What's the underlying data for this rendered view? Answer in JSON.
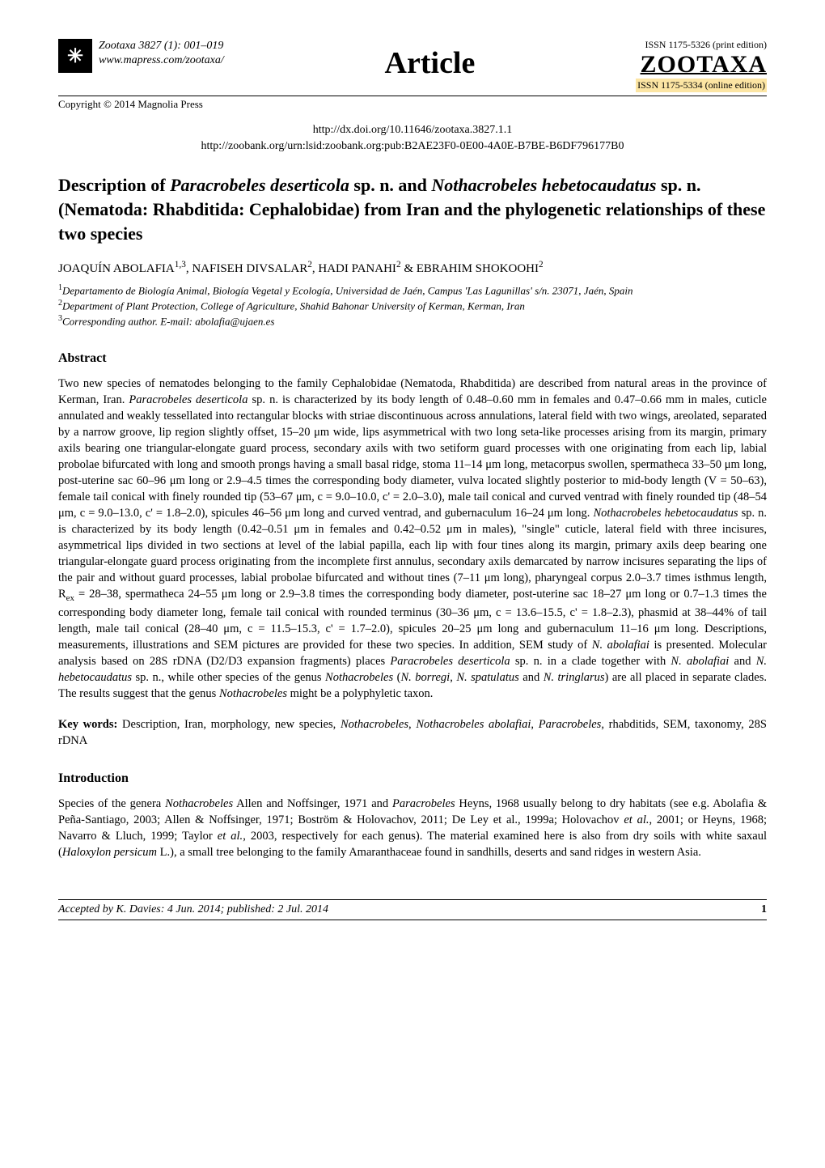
{
  "header": {
    "journal_line": "Zootaxa 3827 (1): 001–019",
    "website": "www.mapress.com/zootaxa/",
    "copyright": "Copyright © 2014 Magnolia Press",
    "article_label": "Article",
    "issn_print": "ISSN 1175-5326 (print edition)",
    "zootaxa": "ZOOTAXA",
    "issn_online": "ISSN 1175-5334 (online edition)",
    "doi_url": "http://dx.doi.org/10.11646/zootaxa.3827.1.1",
    "zoobank_url": "http://zoobank.org/urn:lsid:zoobank.org:pub:B2AE23F0-0E00-4A0E-B7BE-B6DF796177B0"
  },
  "title_html": "Description of <em>Paracrobeles deserticola</em> sp. n. and <em>Nothacrobeles hebetocaudatus</em> sp. n. (Nematoda: Rhabditida: Cephalobidae) from Iran and the phylogenetic relationships of these two species",
  "authors_html": "JOAQUÍN ABOLAFIA<sup>1,3</sup>, NAFISEH DIVSALAR<sup>2</sup>, HADI PANAHI<sup>2</sup> & EBRAHIM SHOKOOHI<sup>2</sup>",
  "affiliations_html": "<sup>1</sup>Departamento de Biología Animal, Biología Vegetal y Ecología, Universidad de Jaén, Campus 'Las Lagunillas' s/n. 23071, Jaén, Spain<br><sup>2</sup>Department of Plant Protection, College of Agriculture, Shahid Bahonar University of Kerman, Kerman, Iran<br><sup>3</sup>Corresponding author. E-mail: abolafia@ujaen.es",
  "abstract": {
    "heading": "Abstract",
    "body_html": "Two new species of nematodes belonging to the family Cephalobidae (Nematoda, Rhabditida) are described from natural areas in the province of Kerman, Iran. <em>Paracrobeles deserticola</em> sp. n. is characterized by its body length of 0.48–0.60 mm in females and 0.47–0.66 mm in males, cuticle annulated and weakly tessellated into rectangular blocks with striae discontinuous across annulations, lateral field with two wings, areolated, separated by a narrow groove, lip region slightly offset, 15–20 μm wide, lips asymmetrical with two long seta-like processes arising from its margin, primary axils bearing one triangular-elongate guard process, secondary axils with two setiform guard processes with one originating from each lip, labial probolae bifurcated with long and smooth prongs having a small basal ridge, stoma 11–14 μm long, metacorpus swollen, spermatheca 33–50 μm long, post-uterine sac 60–96 μm long or 2.9–4.5 times the corresponding body diameter, vulva located slightly posterior to mid-body length (V = 50–63), female tail conical with finely rounded tip (53–67 μm, c = 9.0–10.0, c' = 2.0–3.0), male tail conical and curved ventrad with finely rounded tip (48–54 μm, c = 9.0–13.0, c' = 1.8–2.0), spicules 46–56 μm long and curved ventrad, and gubernaculum 16–24 μm long. <em>Nothacrobeles hebetocaudatus</em> sp. n. is characterized by its body length (0.42–0.51 μm in females and 0.42–0.52 μm in males), \"single\" cuticle, lateral field with three incisures, asymmetrical lips divided in two sections at level of the labial papilla, each lip with four tines along its margin, primary axils deep bearing one triangular-elongate guard process originating from the incomplete first annulus, secondary axils demarcated by narrow incisures separating the lips of the pair and without guard processes, labial probolae bifurcated and without tines (7–11 μm long), pharyngeal corpus 2.0–3.7 times isthmus length, R<sub>ex</sub> = 28–38, spermatheca 24–55 μm long or 2.9–3.8 times the corresponding body diameter, post-uterine sac 18–27 μm long or 0.7–1.3 times the corresponding body diameter long, female tail conical with rounded terminus (30–36 μm, c = 13.6–15.5, c' = 1.8–2.3), phasmid at 38–44% of tail length, male tail conical (28–40 μm, c = 11.5–15.3, c' = 1.7–2.0), spicules 20–25 μm long and gubernaculum 11–16 μm long. Descriptions, measurements, illustrations and SEM pictures are provided for these two species. In addition, SEM study of <em>N. abolafiai</em> is presented. Molecular analysis based on 28S rDNA (D2/D3 expansion fragments) places <em>Paracrobeles deserticola</em> sp. n. in a clade together with <em>N. abolafiai</em> and <em>N. hebetocaudatus</em> sp. n., while other species of the genus <em>Nothacrobeles</em> (<em>N. borregi</em>, <em>N. spatulatus</em> and <em>N. tringlarus</em>) are all placed in separate clades. The results suggest that the genus <em>Nothacrobeles</em> might be a polyphyletic taxon."
  },
  "keywords": {
    "label": "Key words:",
    "text_html": " Description, Iran, morphology, new species, <em>Nothacrobeles</em>, <em>Nothacrobeles abolafiai</em>, <em>Paracrobeles</em>, rhabditids, SEM, taxonomy, 28S rDNA"
  },
  "introduction": {
    "heading": "Introduction",
    "body_html": "Species of the genera <em>Nothacrobeles</em> Allen and Noffsinger, 1971 and <em>Paracrobeles</em> Heyns, 1968 usually belong to dry habitats (see e.g. Abolafia & Peña-Santiago, 2003; Allen & Noffsinger, 1971; Boström & Holovachov, 2011; De Ley et al., 1999a; Holovachov <em>et al.</em>, 2001; or Heyns, 1968; Navarro & Lluch, 1999; Taylor <em>et al.</em>, 2003, respectively for each genus). The material examined here is also from dry soils with white saxaul (<em>Haloxylon persicum</em> L.), a small tree belonging to the family Amaranthaceae found in sandhills, deserts and sand ridges in western Asia."
  },
  "footer": {
    "accepted": "Accepted by K. Davies: 4 Jun. 2014; published: 2 Jul. 2014",
    "page_number": "1"
  },
  "colors": {
    "background": "#ffffff",
    "text": "#000000",
    "highlight": "#fce5a3"
  },
  "typography": {
    "body_font": "Times New Roman",
    "title_size_pt": 16,
    "body_size_pt": 11,
    "abstract_size_pt": 11
  }
}
